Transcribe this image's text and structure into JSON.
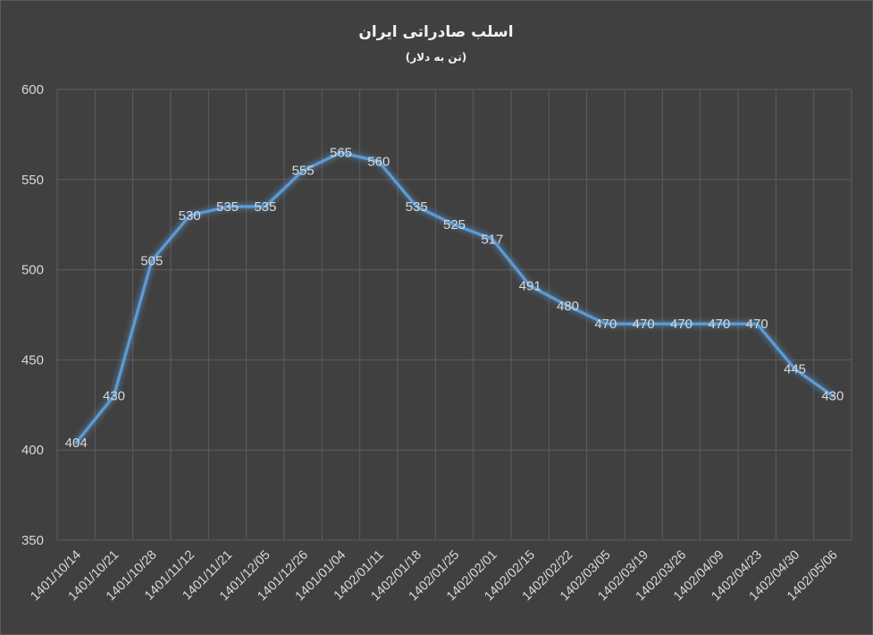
{
  "chart_data": {
    "type": "line",
    "title": "اسلب صادراتی ایران",
    "subtitle": "(تن به دلار)",
    "xlabel": "",
    "ylabel": "",
    "categories": [
      "1401/10/14",
      "1401/10/21",
      "1401/10/28",
      "1401/11/12",
      "1401/11/21",
      "1401/12/05",
      "1401/12/26",
      "1401/01/04",
      "1402/01/11",
      "1402/01/18",
      "1402/01/25",
      "1402/02/01",
      "1402/02/15",
      "1402/02/22",
      "1402/03/05",
      "1402/03/19",
      "1402/03/26",
      "1402/04/09",
      "1402/04/23",
      "1402/04/30",
      "1402/05/06"
    ],
    "series": [
      {
        "values": [
          404,
          430,
          505,
          530,
          535,
          535,
          555,
          565,
          560,
          535,
          525,
          517,
          491,
          480,
          470,
          470,
          470,
          470,
          470,
          445,
          430
        ],
        "color": "#5b9bd5"
      }
    ],
    "ylim": [
      350,
      600
    ],
    "yticks": [
      350,
      400,
      450,
      500,
      550,
      600
    ],
    "grid": "vertical and horizontal",
    "legend": "none",
    "colors": {
      "background": "#404040",
      "line": "#5b9bd5",
      "grid": "#5e5e5e",
      "text": "#d9d9d9"
    }
  }
}
